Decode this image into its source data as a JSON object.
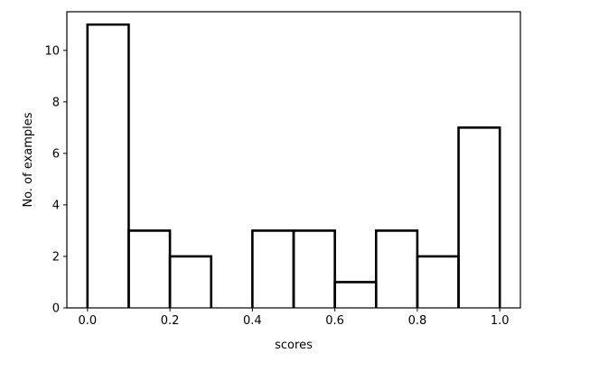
{
  "chart_data": {
    "type": "bar",
    "style": "step-histogram",
    "title": "",
    "xlabel": "scores",
    "ylabel": "No. of examples",
    "xlim": [
      -0.05,
      1.05
    ],
    "ylim": [
      0,
      11.5
    ],
    "x_ticks": [
      "0.0",
      "0.2",
      "0.4",
      "0.6",
      "0.8",
      "1.0"
    ],
    "y_ticks": [
      "0",
      "2",
      "4",
      "6",
      "8",
      "10"
    ],
    "bin_edges": [
      0.0,
      0.1,
      0.2,
      0.3,
      0.4,
      0.5,
      0.6,
      0.7,
      0.8,
      0.9,
      1.0
    ],
    "counts": [
      11,
      3,
      2,
      0,
      3,
      3,
      1,
      3,
      2,
      7
    ],
    "grid": false,
    "legend": "none",
    "line_color": "#000000"
  }
}
